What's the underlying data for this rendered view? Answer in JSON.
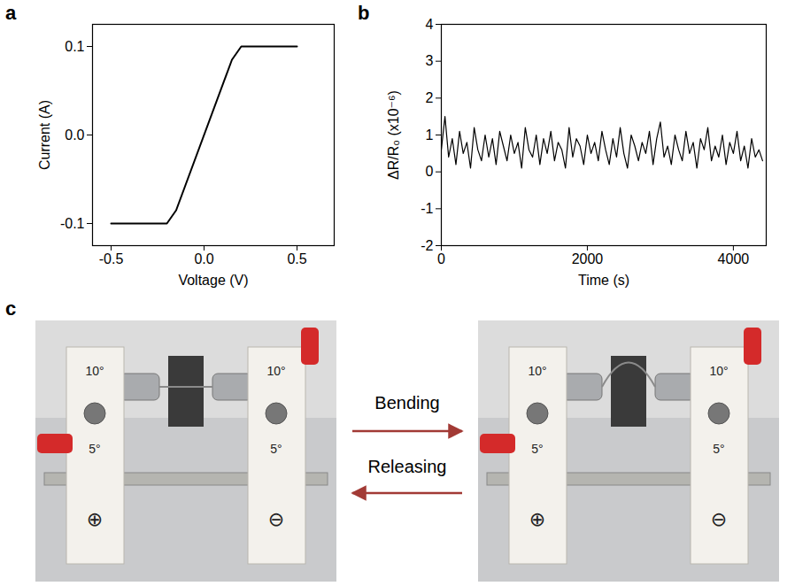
{
  "chart_data": [
    {
      "panel": "a",
      "type": "line",
      "x_label": "Voltage (V)",
      "y_label": "Current (A)",
      "x": [
        -0.5,
        -0.2,
        -0.15,
        0.15,
        0.2,
        0.5
      ],
      "values": [
        -0.1,
        -0.1,
        -0.085,
        0.085,
        0.1,
        0.1
      ],
      "color": "#000000",
      "grid": false,
      "xlim": [
        -0.6,
        0.7
      ],
      "xticks": [
        -0.5,
        {
          "value": 0,
          "label": "0.0"
        },
        0.5
      ],
      "ylim": [
        -0.125,
        0.125
      ],
      "yticks": [
        -0.1,
        {
          "value": 0,
          "label": "0.0"
        },
        0.1
      ]
    },
    {
      "panel": "b",
      "type": "line",
      "x_label": "Time (s)",
      "y_label": "ΔR/R₀ (x10⁻⁶)",
      "x": [
        0,
        50,
        100,
        150,
        200,
        250,
        300,
        350,
        400,
        450,
        500,
        550,
        600,
        650,
        700,
        750,
        800,
        850,
        900,
        950,
        1000,
        1050,
        1100,
        1150,
        1200,
        1250,
        1300,
        1350,
        1400,
        1450,
        1500,
        1550,
        1600,
        1650,
        1700,
        1750,
        1800,
        1850,
        1900,
        1950,
        2000,
        2050,
        2100,
        2150,
        2200,
        2250,
        2300,
        2350,
        2400,
        2450,
        2500,
        2550,
        2600,
        2650,
        2700,
        2750,
        2800,
        2850,
        2900,
        2950,
        3000,
        3050,
        3100,
        3150,
        3200,
        3250,
        3300,
        3350,
        3400,
        3450,
        3500,
        3550,
        3600,
        3650,
        3700,
        3750,
        3800,
        3850,
        3900,
        3950,
        4000,
        4050,
        4100,
        4150,
        4200,
        4250,
        4300,
        4350,
        4400
      ],
      "values": [
        0.6,
        1.5,
        0.4,
        0.9,
        0.2,
        1.1,
        0.5,
        0.8,
        0.1,
        1.2,
        0.6,
        0.3,
        1.0,
        0.4,
        0.9,
        0.2,
        1.1,
        0.7,
        0.3,
        1.0,
        0.5,
        0.8,
        0.1,
        1.2,
        0.6,
        0.4,
        1.0,
        0.2,
        0.9,
        0.5,
        1.1,
        0.3,
        0.8,
        0.6,
        0.1,
        1.2,
        0.4,
        0.9,
        0.7,
        0.2,
        1.0,
        0.5,
        0.8,
        0.3,
        1.1,
        0.6,
        0.2,
        0.9,
        0.4,
        1.2,
        0.5,
        0.1,
        1.0,
        0.7,
        0.3,
        0.8,
        0.5,
        1.1,
        0.2,
        0.9,
        1.35,
        0.4,
        0.7,
        0.2,
        1.0,
        0.6,
        0.3,
        1.1,
        0.5,
        0.8,
        0.1,
        0.9,
        0.6,
        1.2,
        0.3,
        0.7,
        0.4,
        1.0,
        0.2,
        0.8,
        0.5,
        1.1,
        0.3,
        0.7,
        0.1,
        0.9,
        0.4,
        0.6,
        0.3
      ],
      "color": "#000000",
      "grid": false,
      "xlim": [
        0,
        4450
      ],
      "xticks": [
        0,
        2000,
        4000
      ],
      "ylim": [
        -2,
        4
      ],
      "yticks": [
        -2,
        -1,
        0,
        1,
        2,
        3,
        4
      ]
    }
  ],
  "photo_panel": {
    "panel": "c",
    "arrows": [
      "Bending",
      "Releasing"
    ],
    "device_labels": {
      "left": [
        "10°",
        "5°",
        "⊕"
      ],
      "right": [
        "10°",
        "5°",
        "⊖"
      ]
    }
  }
}
